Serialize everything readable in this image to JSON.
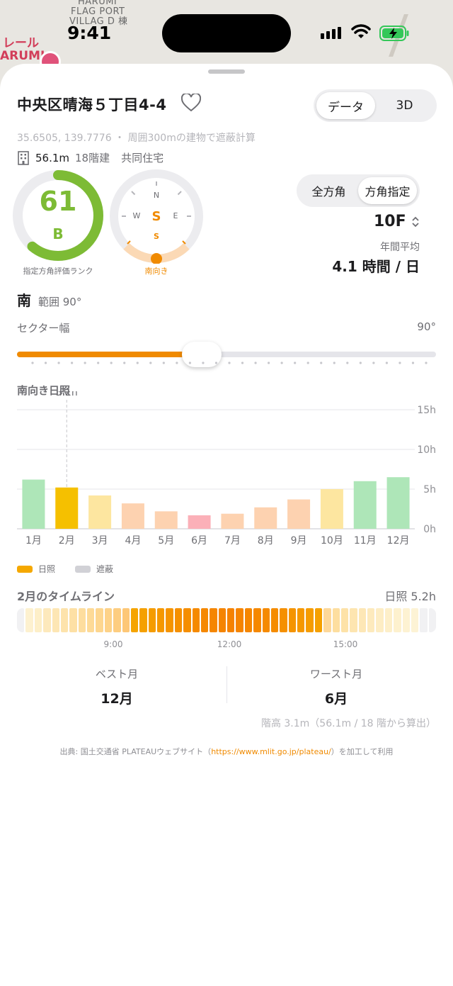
{
  "status": {
    "time": "9:41"
  },
  "map": {
    "labels": [
      "HARUMI",
      "FLAG PORT",
      "VILLAG D 棟"
    ],
    "red_labels": [
      "レール",
      "ARUMI"
    ]
  },
  "header": {
    "title": "中央区晴海５丁目4-4",
    "view_tabs": [
      "データ",
      "3D"
    ],
    "active_view": "データ"
  },
  "location": {
    "coords_text": "35.6505, 139.7776 ・ 周囲300mの建物で遮蔽計算"
  },
  "building": {
    "height": "56.1m",
    "floors": "18階建",
    "type": "共同住宅"
  },
  "score": {
    "value": "61",
    "rank": "B",
    "fraction": 0.61,
    "caption": "指定方角評価ランク",
    "color": "#7dbb35"
  },
  "compass": {
    "labels": {
      "n": "N",
      "e": "E",
      "w": "W",
      "s_big": "S",
      "s_small": "S"
    },
    "caption": "南向き",
    "accent": "#f08a00"
  },
  "mode": {
    "tabs": [
      "全方角",
      "方角指定"
    ],
    "active": "方角指定"
  },
  "floor": {
    "value": "10F",
    "chevron": "⌃⌄"
  },
  "annual": {
    "label": "年間平均",
    "value": "4.1 時間 / 日"
  },
  "direction": {
    "name": "南",
    "range": "範囲 90°"
  },
  "sector": {
    "label": "セクター幅",
    "value": "90°",
    "fraction": 0.4
  },
  "chart_title": "南向き日照",
  "chart_data": {
    "type": "bar",
    "categories": [
      "1月",
      "2月",
      "3月",
      "4月",
      "5月",
      "6月",
      "7月",
      "8月",
      "9月",
      "10月",
      "11月",
      "12月"
    ],
    "values": [
      6.2,
      5.2,
      4.2,
      3.2,
      2.2,
      1.7,
      1.9,
      2.7,
      3.7,
      5.0,
      6.0,
      6.5
    ],
    "colors": [
      "#aee6b8",
      "#f5c000",
      "#fde6a0",
      "#fdd2b0",
      "#fdd2b0",
      "#fbb0b8",
      "#fdd2b0",
      "#fdd2b0",
      "#fdd2b0",
      "#fde6a0",
      "#aee6b8",
      "#aee6b8"
    ],
    "ylim": [
      0,
      15
    ],
    "y_ticks": [
      "0h",
      "5h",
      "10h",
      "15h"
    ],
    "y_tick_values": [
      0,
      5,
      10,
      15
    ],
    "highlight_index": 1,
    "highlight_label": "5.2h",
    "grid": true
  },
  "legend": [
    {
      "label": "日照",
      "color": "#f5a800"
    },
    {
      "label": "遮蔽",
      "color": "#d1d1d6"
    }
  ],
  "timeline": {
    "title": "2月のタイムライン",
    "total": "日照 5.2h",
    "ticks": [
      "9:00",
      "12:00",
      "15:00"
    ],
    "cells": [
      0,
      1,
      1,
      1,
      1,
      1,
      1,
      1,
      1,
      1,
      1,
      1,
      1,
      1,
      1,
      1,
      1,
      1,
      1,
      1,
      1,
      1,
      1,
      1,
      1,
      1,
      1,
      1,
      1,
      1,
      1,
      1,
      1,
      1,
      1,
      1,
      1,
      1,
      1,
      1,
      1,
      1,
      1,
      1,
      1,
      1,
      1,
      0
    ],
    "shades": [
      "#f1f1f3",
      "#fdf1cf",
      "#fdefc8",
      "#fde9bc",
      "#fde6b4",
      "#fde3ac",
      "#fde0a5",
      "#fddd9e",
      "#fdda97",
      "#fdd68f",
      "#fdd288",
      "#fdcd80",
      "#fdc777",
      "#f5a400",
      "#f5a000",
      "#f59c00",
      "#f59800",
      "#f59400",
      "#f59000",
      "#f58e00",
      "#f58a00",
      "#f58800",
      "#f58600",
      "#f58400",
      "#f58200",
      "#f58400",
      "#f58600",
      "#f58800",
      "#f58a00",
      "#f58c00",
      "#f59000",
      "#f59400",
      "#f59800",
      "#f59c00",
      "#f5a000",
      "#fdd89a",
      "#fdde9f",
      "#fde2a8",
      "#fde5b0",
      "#fde7b6",
      "#fdeabd",
      "#fdedc4",
      "#fdefc9",
      "#fdf1ce",
      "#fdf2d2",
      "#fdf3d5",
      "#f1f1f3",
      "#f1f1f3"
    ]
  },
  "best": {
    "label": "ベスト月",
    "value": "12月"
  },
  "worst": {
    "label": "ワースト月",
    "value": "6月"
  },
  "floor_note": "階高 3.1m（56.1m / 18 階から算出）",
  "source": {
    "prefix": "出典: 国土交通省 PLATEAUウェブサイト（",
    "link": "https://www.mlit.go.jp/plateau/",
    "suffix": "）を加工して利用"
  }
}
